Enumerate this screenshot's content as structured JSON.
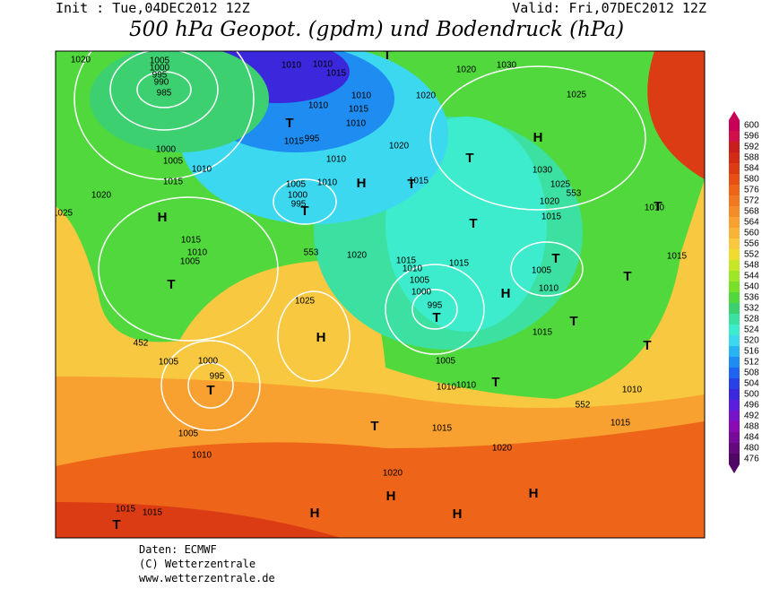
{
  "header": {
    "init": "Init : Tue,04DEC2012 12Z",
    "valid": "Valid: Fri,07DEC2012 12Z",
    "title": "500 hPa Geopot. (gpdm) und Bodendruck (hPa)"
  },
  "colorbar": {
    "ticks": [
      600,
      596,
      592,
      588,
      584,
      580,
      576,
      572,
      568,
      564,
      560,
      556,
      552,
      548,
      544,
      540,
      536,
      532,
      528,
      524,
      520,
      516,
      512,
      508,
      504,
      500,
      496,
      492,
      488,
      484,
      480,
      476
    ],
    "colors": [
      "#c8005a",
      "#d0104a",
      "#c81e1e",
      "#d22a14",
      "#dc3c14",
      "#e65014",
      "#ee6418",
      "#f07820",
      "#f48c28",
      "#f8a030",
      "#f8b438",
      "#f8c840",
      "#f0dc30",
      "#c8e628",
      "#a0e628",
      "#78e028",
      "#50d83c",
      "#3cd070",
      "#3ce0a0",
      "#3ceccc",
      "#3cd8f0",
      "#28b4f0",
      "#1e8cf0",
      "#1e64f0",
      "#2840e6",
      "#3c28dc",
      "#5a1edc",
      "#7814c8",
      "#8c0ab4",
      "#780a9a",
      "#64087e",
      "#500664"
    ]
  },
  "map": {
    "labels": [
      "1020",
      "1005",
      "1000",
      "995",
      "990",
      "985",
      "1010",
      "1010",
      "1015",
      "1010",
      "1010",
      "1015",
      "1010",
      "1015",
      "995",
      "1000",
      "1005",
      "1010",
      "1015",
      "1020",
      "1025",
      "1005",
      "1000",
      "995",
      "1010",
      "1010",
      "1020",
      "1030",
      "1025",
      "1020",
      "1020",
      "1015",
      "1030",
      "1025",
      "553",
      "1020",
      "1015",
      "1010",
      "1015",
      "1015",
      "1010",
      "1005",
      "553",
      "1020",
      "1015",
      "1015",
      "1010",
      "1005",
      "1000",
      "995",
      "1005",
      "1010",
      "1015",
      "1025",
      "1005",
      "1000",
      "995",
      "452",
      "1005",
      "1010",
      "1010",
      "1010",
      "552",
      "1015",
      "1015",
      "1005",
      "1010",
      "1020",
      "1020",
      "1015",
      "1015"
    ],
    "centers": [
      "T",
      "T",
      "H",
      "T",
      "H",
      "T",
      "T",
      "H",
      "T",
      "T",
      "T",
      "T",
      "H",
      "T",
      "T",
      "T",
      "H",
      "T",
      "T",
      "T",
      "T",
      "H",
      "H",
      "H",
      "H",
      "T"
    ]
  },
  "footer": {
    "lines": [
      "Daten: ECMWF",
      "(C) Wetterzentrale",
      "www.wetterzentrale.de"
    ]
  }
}
